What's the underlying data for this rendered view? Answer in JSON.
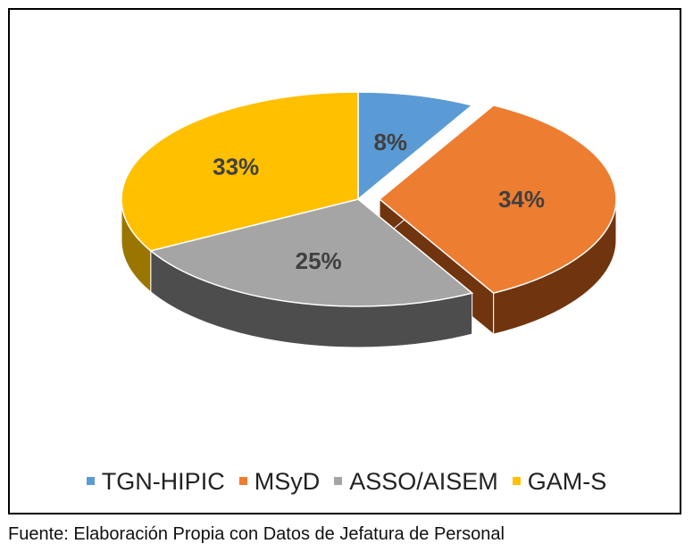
{
  "chart_data": {
    "type": "pie",
    "title": "",
    "categories": [
      "TGN-HIPIC",
      "MSyD",
      "ASSO/AISEM",
      "GAM-S"
    ],
    "values": [
      8,
      34,
      25,
      33
    ],
    "data_labels": [
      "8%",
      "34%",
      "25%",
      "33%"
    ],
    "colors": [
      "#5b9bd5",
      "#ed7d31",
      "#a5a5a5",
      "#ffc000"
    ],
    "side_colors": [
      "#2f5f8a",
      "#70340f",
      "#4d4d4d",
      "#9a7500"
    ],
    "exploded": [
      false,
      true,
      false,
      false
    ],
    "legend_position": "bottom",
    "style": "3d"
  },
  "source_text": "Fuente: Elaboración Propia con Datos de Jefatura de Personal"
}
